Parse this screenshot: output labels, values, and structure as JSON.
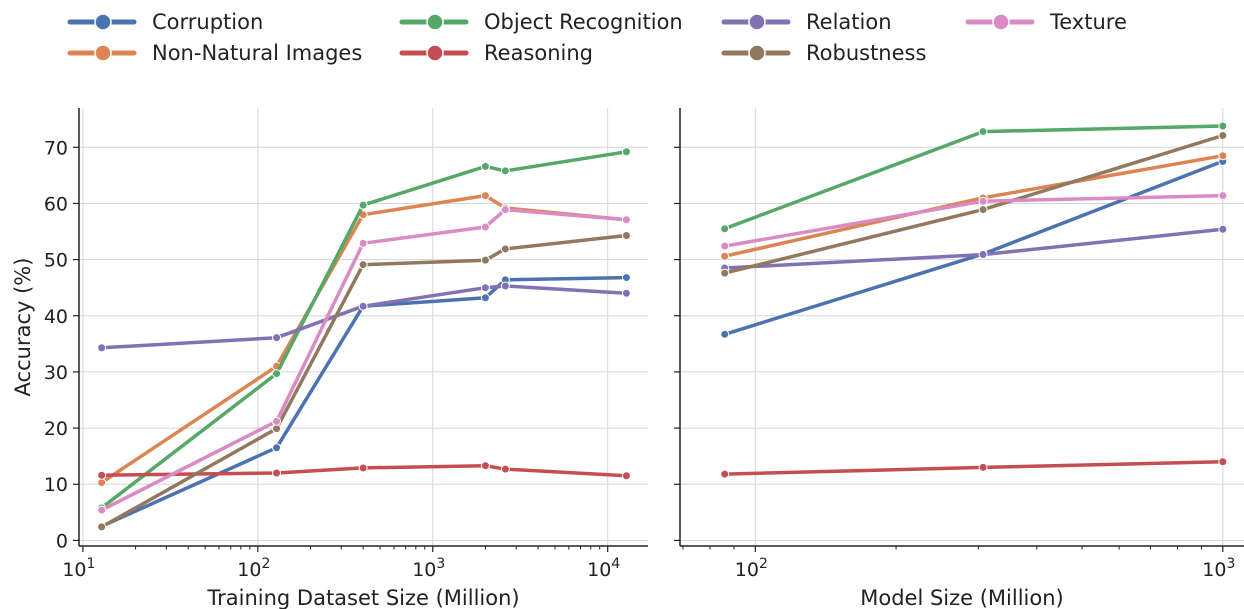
{
  "chart_data": [
    {
      "type": "line",
      "xlabel": "Training Dataset Size (Million)",
      "ylabel": "Accuracy (%)",
      "xscale": "log",
      "xlim": [
        9.5,
        17000
      ],
      "ylim": [
        -1,
        77
      ],
      "yticks": [
        0,
        10,
        20,
        30,
        40,
        50,
        60,
        70
      ],
      "xticks": [
        {
          "value": 10,
          "base": "10",
          "exp": "1"
        },
        {
          "value": 100,
          "base": "10",
          "exp": "2"
        },
        {
          "value": 1000,
          "base": "10",
          "exp": "3"
        },
        {
          "value": 10000,
          "base": "10",
          "exp": "4"
        }
      ],
      "grid": true,
      "x": [
        12.8,
        128,
        400,
        2000,
        2600,
        12800
      ],
      "series": [
        {
          "name": "Corruption",
          "values": [
            2.5,
            16.5,
            41.7,
            43.2,
            46.4,
            46.8
          ]
        },
        {
          "name": "Non-Natural Images",
          "values": [
            10.3,
            31.0,
            58.0,
            61.4,
            59.2,
            57.1
          ]
        },
        {
          "name": "Object Recognition",
          "values": [
            5.8,
            29.7,
            59.7,
            66.6,
            65.8,
            69.2
          ]
        },
        {
          "name": "Reasoning",
          "values": [
            11.6,
            12.0,
            12.9,
            13.3,
            12.7,
            11.5
          ]
        },
        {
          "name": "Relation",
          "values": [
            34.3,
            36.1,
            41.7,
            45.0,
            45.3,
            44.0
          ]
        },
        {
          "name": "Robustness",
          "values": [
            2.4,
            19.9,
            49.1,
            49.9,
            51.9,
            54.3
          ]
        },
        {
          "name": "Texture",
          "values": [
            5.4,
            21.2,
            52.9,
            55.8,
            58.9,
            57.1
          ]
        }
      ]
    },
    {
      "type": "line",
      "xlabel": "Model Size (Million)",
      "ylabel": "",
      "xscale": "log",
      "xlim": [
        69,
        1110
      ],
      "ylim": [
        -1,
        77
      ],
      "yticks": [
        0,
        10,
        20,
        30,
        40,
        50,
        60,
        70
      ],
      "xticks": [
        {
          "value": 100,
          "base": "10",
          "exp": "2"
        },
        {
          "value": 1000,
          "base": "10",
          "exp": "3"
        }
      ],
      "grid": true,
      "x": [
        86,
        307,
        1000
      ],
      "series": [
        {
          "name": "Corruption",
          "values": [
            36.7,
            51.0,
            67.5
          ]
        },
        {
          "name": "Non-Natural Images",
          "values": [
            50.6,
            61.0,
            68.5
          ]
        },
        {
          "name": "Object Recognition",
          "values": [
            55.5,
            72.8,
            73.8
          ]
        },
        {
          "name": "Reasoning",
          "values": [
            11.8,
            13.0,
            14.0
          ]
        },
        {
          "name": "Relation",
          "values": [
            48.5,
            50.9,
            55.4
          ]
        },
        {
          "name": "Robustness",
          "values": [
            47.6,
            58.9,
            72.1
          ]
        },
        {
          "name": "Texture",
          "values": [
            52.4,
            60.4,
            61.4
          ]
        }
      ]
    }
  ],
  "legend": {
    "placement": "top",
    "items": [
      {
        "label": "Corruption",
        "color": "#4c72b0"
      },
      {
        "label": "Non-Natural Images",
        "color": "#dd8452"
      },
      {
        "label": "Object Recognition",
        "color": "#55a868"
      },
      {
        "label": "Reasoning",
        "color": "#c44e52"
      },
      {
        "label": "Relation",
        "color": "#8172b3"
      },
      {
        "label": "Robustness",
        "color": "#937860"
      },
      {
        "label": "Texture",
        "color": "#da8bc3"
      }
    ]
  }
}
